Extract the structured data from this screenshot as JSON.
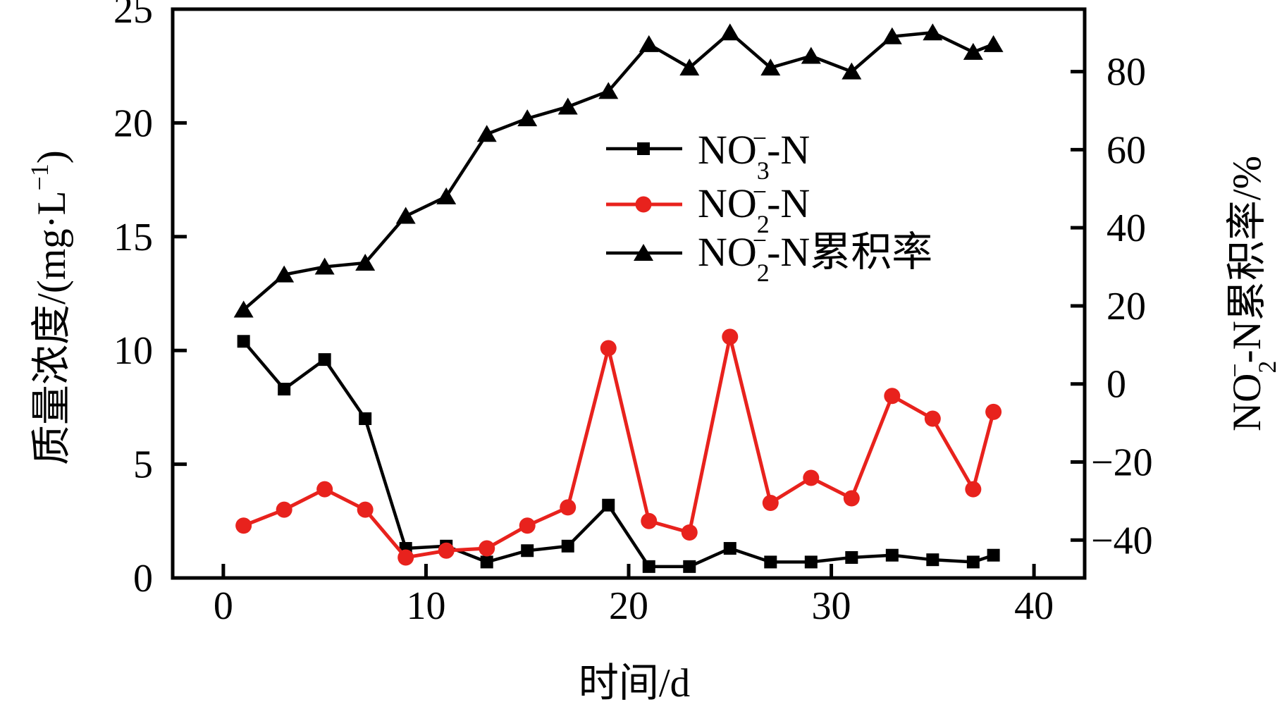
{
  "figure": {
    "background_color": "#ffffff",
    "black": "#000000",
    "red": "#e8221d"
  },
  "chart_data": {
    "type": "line",
    "title": "",
    "xlabel": "时间/d",
    "ylabel_left": "质量浓度/(mg·L⁻¹)",
    "ylabel_right": "NO₂⁻-N累积率/%",
    "ylabel_left_segments": [
      {
        "t": "质量浓度/(mg·L"
      },
      {
        "t": "−1",
        "pos": "sup"
      },
      {
        "t": ")"
      }
    ],
    "ylabel_right_segments": [
      {
        "t": "NO"
      },
      {
        "t": "2",
        "pos": "sub"
      },
      {
        "t": "−",
        "pos": "supstack"
      },
      {
        "t": "-N累积率/%"
      }
    ],
    "xlim": [
      -2.5,
      42.5
    ],
    "ylim_left": [
      0,
      25
    ],
    "ylim_right": [
      -49.7,
      96
    ],
    "xticks": [
      0,
      10,
      20,
      30,
      40
    ],
    "yticks_left": [
      0,
      5,
      10,
      15,
      20,
      25
    ],
    "yticks_right": [
      80,
      60,
      40,
      20,
      0,
      -20,
      -40
    ],
    "grid": false,
    "legend_position": "inside upper-right area",
    "x": [
      1,
      3,
      5,
      7,
      9,
      11,
      13,
      15,
      17,
      19,
      21,
      23,
      25,
      27,
      29,
      31,
      33,
      35,
      37,
      38
    ],
    "series": [
      {
        "name": "NO₃⁻-N",
        "axis": "left",
        "color": "#000000",
        "marker": "square",
        "values": [
          10.4,
          8.3,
          9.6,
          7.0,
          1.3,
          1.4,
          0.7,
          1.2,
          1.4,
          3.2,
          0.5,
          0.5,
          1.3,
          0.7,
          0.7,
          0.9,
          1.0,
          0.8,
          0.7,
          1.0
        ],
        "label_segments": [
          {
            "t": "NO"
          },
          {
            "t": "3",
            "pos": "sub"
          },
          {
            "t": "−",
            "pos": "supstack"
          },
          {
            "t": "-N"
          }
        ]
      },
      {
        "name": "NO₂⁻-N",
        "axis": "left",
        "color": "#e8221d",
        "marker": "circle",
        "values": [
          2.3,
          3.0,
          3.9,
          3.0,
          0.9,
          1.2,
          1.3,
          2.3,
          3.1,
          10.1,
          2.5,
          2.0,
          10.6,
          3.3,
          4.4,
          3.5,
          8.0,
          7.0,
          3.9,
          7.3
        ],
        "label_segments": [
          {
            "t": "NO"
          },
          {
            "t": "2",
            "pos": "sub"
          },
          {
            "t": "−",
            "pos": "supstack"
          },
          {
            "t": "-N"
          }
        ]
      },
      {
        "name": "NO₂⁻-N累积率",
        "axis": "right",
        "color": "#000000",
        "marker": "triangle",
        "values": [
          19,
          28,
          30,
          31,
          43,
          48,
          64,
          68,
          71,
          75,
          87,
          81,
          90,
          81,
          84,
          80,
          89,
          90,
          85,
          87
        ],
        "label_segments": [
          {
            "t": "NO"
          },
          {
            "t": "2",
            "pos": "sub"
          },
          {
            "t": "−",
            "pos": "supstack"
          },
          {
            "t": "-N累积率"
          }
        ]
      }
    ]
  }
}
